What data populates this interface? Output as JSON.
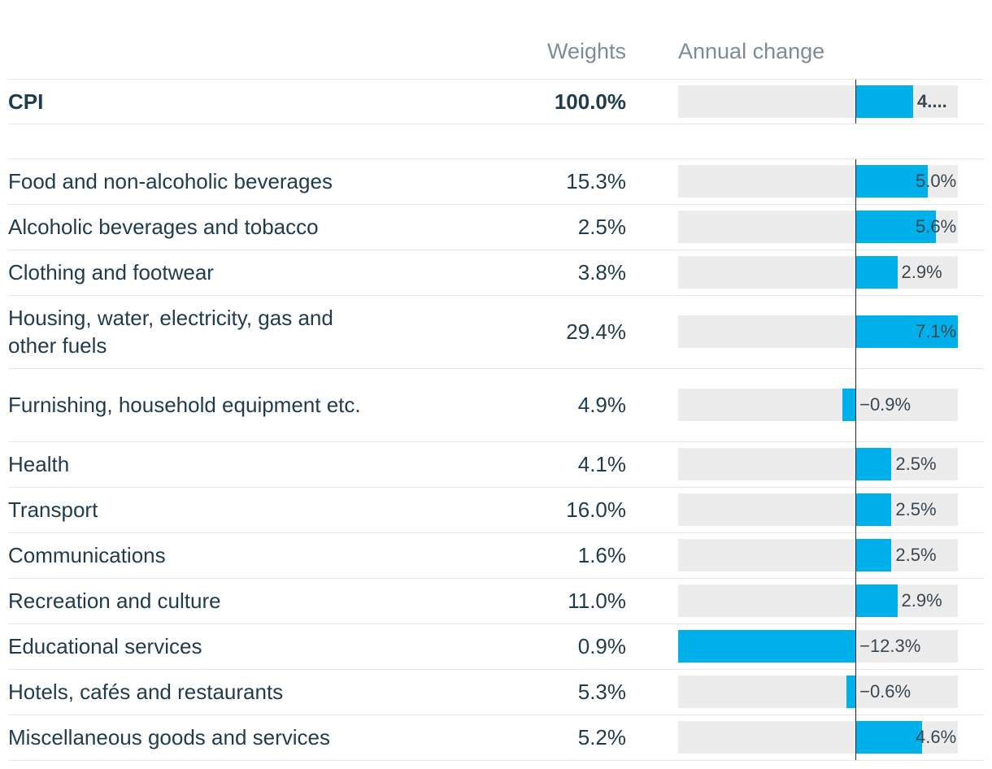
{
  "headers": {
    "weights": "Weights",
    "change": "Annual change"
  },
  "summary": {
    "category": "CPI",
    "weight": "100.0%",
    "change": 4.0,
    "change_label": "4...."
  },
  "rows": [
    {
      "category": "Food and non-alcoholic beverages",
      "weight": "15.3%",
      "change": 5.0,
      "change_label": "5.0%"
    },
    {
      "category": "Alcoholic beverages and tobacco",
      "weight": "2.5%",
      "change": 5.6,
      "change_label": "5.6%"
    },
    {
      "category": "Clothing and footwear",
      "weight": "3.8%",
      "change": 2.9,
      "change_label": "2.9%"
    },
    {
      "category": "Housing, water, electricity, gas and other fuels",
      "weight": "29.4%",
      "change": 7.1,
      "change_label": "7.1%"
    },
    {
      "category": "Furnishing, household equipment etc.",
      "weight": "4.9%",
      "change": -0.9,
      "change_label": "−0.9%"
    },
    {
      "category": "Health",
      "weight": "4.1%",
      "change": 2.5,
      "change_label": "2.5%"
    },
    {
      "category": "Transport",
      "weight": "16.0%",
      "change": 2.5,
      "change_label": "2.5%"
    },
    {
      "category": "Communications",
      "weight": "1.6%",
      "change": 2.5,
      "change_label": "2.5%"
    },
    {
      "category": "Recreation and culture",
      "weight": "11.0%",
      "change": 2.9,
      "change_label": "2.9%"
    },
    {
      "category": "Educational services",
      "weight": "0.9%",
      "change": -12.3,
      "change_label": "−12.3%"
    },
    {
      "category": "Hotels, cafés and restaurants",
      "weight": "5.3%",
      "change": -0.6,
      "change_label": "−0.6%"
    },
    {
      "category": "Miscellaneous goods and services",
      "weight": "5.2%",
      "change": 4.6,
      "change_label": "4.6%"
    }
  ],
  "chart_data": {
    "type": "bar",
    "orientation": "horizontal",
    "categories": [
      "CPI",
      "Food and non-alcoholic beverages",
      "Alcoholic beverages and tobacco",
      "Clothing and footwear",
      "Housing, water, electricity, gas and other fuels",
      "Furnishing, household equipment etc.",
      "Health",
      "Transport",
      "Communications",
      "Recreation and culture",
      "Educational services",
      "Hotels, cafés and restaurants",
      "Miscellaneous goods and services"
    ],
    "weights": [
      100.0,
      15.3,
      2.5,
      3.8,
      29.4,
      4.9,
      4.1,
      16.0,
      1.6,
      11.0,
      0.9,
      5.3,
      5.2
    ],
    "values": [
      4.0,
      5.0,
      5.6,
      2.9,
      7.1,
      -0.9,
      2.5,
      2.5,
      2.5,
      2.9,
      -12.3,
      -0.6,
      4.6
    ],
    "xlim": [
      -12.3,
      7.1
    ],
    "bar_color": "#00b0ea",
    "track_color": "#ececec"
  }
}
